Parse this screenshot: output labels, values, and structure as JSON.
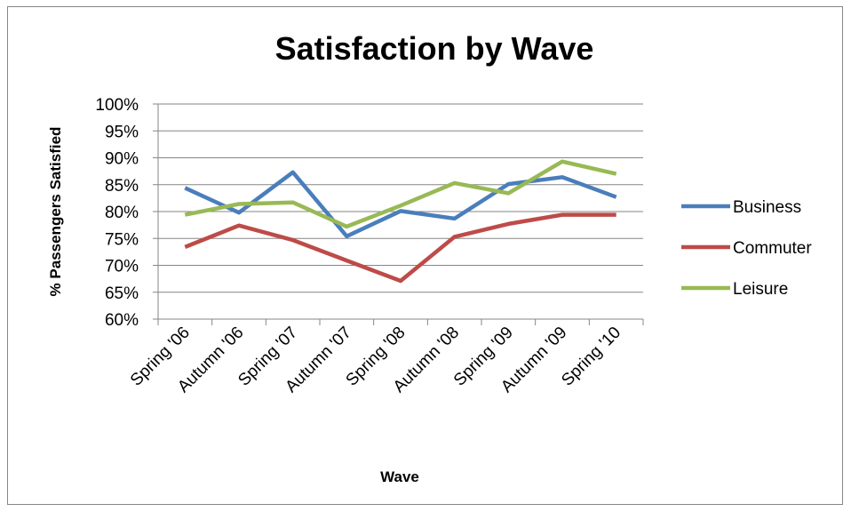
{
  "chart_data": {
    "type": "line",
    "title": "Satisfaction by Wave",
    "xlabel": "Wave",
    "ylabel": "% Passengers  Satisfied",
    "categories": [
      "Spring '06",
      "Autumn '06",
      "Spring '07",
      "Autumn '07",
      "Spring '08",
      "Autumn '08",
      "Spring '09",
      "Autumn '09",
      "Spring '10"
    ],
    "ylim": [
      0.6,
      1.0
    ],
    "yticks": [
      "60%",
      "65%",
      "70%",
      "75%",
      "80%",
      "85%",
      "90%",
      "95%",
      "100%"
    ],
    "ytick_values": [
      0.6,
      0.65,
      0.7,
      0.75,
      0.8,
      0.85,
      0.9,
      0.95,
      1.0
    ],
    "grid": true,
    "legend_position": "right",
    "series": [
      {
        "name": "Business",
        "color": "#4A7EBB",
        "values": [
          0.844,
          0.798,
          0.873,
          0.754,
          0.801,
          0.787,
          0.851,
          0.864,
          0.827
        ]
      },
      {
        "name": "Commuter",
        "color": "#BE4B48",
        "values": [
          0.734,
          0.774,
          0.747,
          0.709,
          0.671,
          0.753,
          0.777,
          0.794,
          0.794
        ]
      },
      {
        "name": "Leisure",
        "color": "#98B954",
        "values": [
          0.794,
          0.814,
          0.817,
          0.772,
          0.811,
          0.853,
          0.834,
          0.893,
          0.87
        ]
      }
    ]
  }
}
